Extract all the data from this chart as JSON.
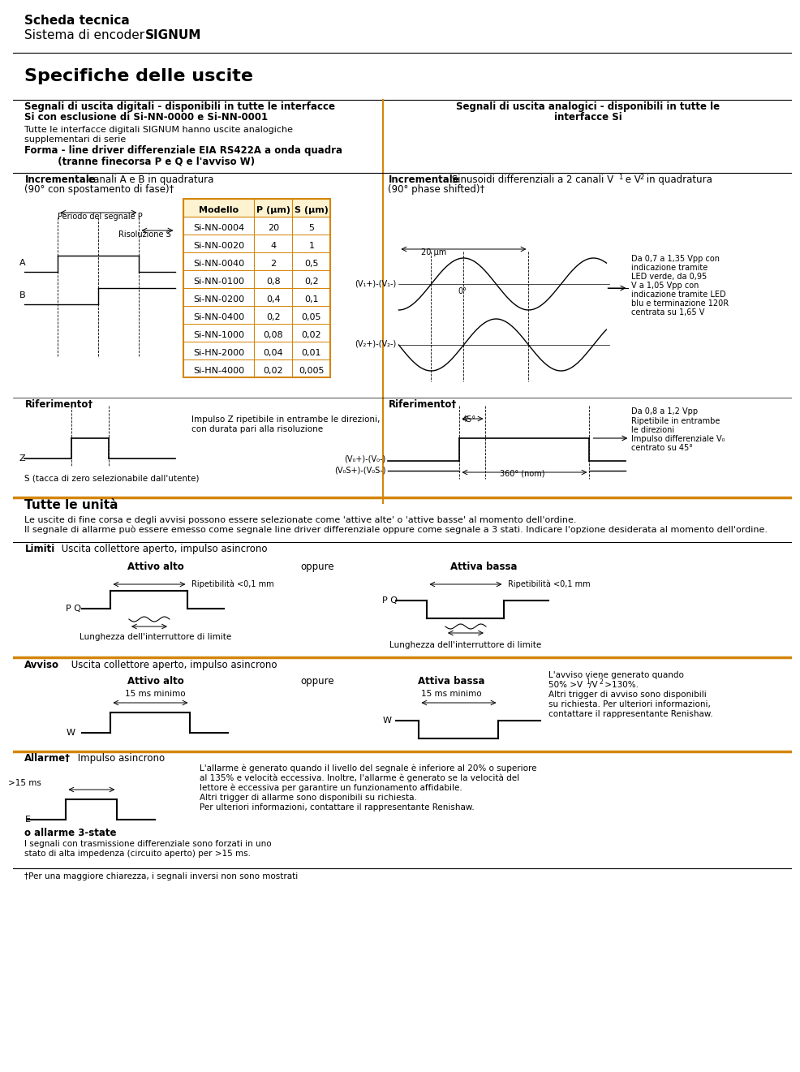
{
  "bg_color": "#ffffff",
  "text_color": "#000000",
  "orange_color": "#D4860A",
  "title1": "Scheda tecnica",
  "title2_normal": "Sistema di encoder ",
  "title2_bold": "SIGNUM",
  "section_title": "Specifiche delle uscite",
  "left_header1": "Segnali di uscita digitali - disponibili in tutte le interfacce",
  "left_header2": "Si con esclusione di Si-NN-0000 e Si-NN-0001",
  "right_header1": "Segnali di uscita analogici - disponibili in tutte le",
  "right_header2": "interfacce Si",
  "left_sub1": "Tutte le interfacce digitali SIGNUM hanno uscite analogiche",
  "left_sub2": "supplementari di serie",
  "left_sub3": "Forma - line driver differenziale EIA RS422A a onda quadra",
  "left_sub4": "          (tranne finecorsa P e Q e l'avviso W)",
  "inc_left_title": "Incrementale",
  "inc_left_sub1": " canali A e B in quadratura",
  "inc_left_sub2": "(90° con spostamento di fase)†",
  "inc_right_title": "Incrementale",
  "inc_right_sub4": "(90° phase shifted)†",
  "table_headers": [
    "Modello",
    "P (µm)",
    "S (µm)"
  ],
  "table_rows": [
    [
      "Si-NN-0004",
      "20",
      "5"
    ],
    [
      "Si-NN-0020",
      "4",
      "1"
    ],
    [
      "Si-NN-0040",
      "2",
      "0,5"
    ],
    [
      "Si-NN-0100",
      "0,8",
      "0,2"
    ],
    [
      "Si-NN-0200",
      "0,4",
      "0,1"
    ],
    [
      "Si-NN-0400",
      "0,2",
      "0,05"
    ],
    [
      "Si-NN-1000",
      "0,08",
      "0,02"
    ],
    [
      "Si-HN-2000",
      "0,04",
      "0,01"
    ],
    [
      "Si-HN-4000",
      "0,02",
      "0,005"
    ]
  ],
  "ref_left": "Riferimento†",
  "ref_right": "Riferimento†",
  "z_label": "Z",
  "z_desc1": "Impulso Z ripetibile in entrambe le direzioni,",
  "z_desc2": "con durata pari alla risoluzione",
  "s_label": "S (tacca di zero selezionabile dall'utente)",
  "right_ref_desc1": "Da 0,8 a 1,2 Vpp",
  "right_ref_desc2": "Ripetibile in entrambe",
  "right_ref_desc3": "le direzioni",
  "right_ref_desc4": "Impulso differenziale V₀",
  "right_ref_desc5": "centrato su 45°",
  "right_ref_45": "45°",
  "right_ref_360": "360° (nom)",
  "right_sig1": "(V₀+)-(V₀-)",
  "right_sig2": "(V₀S+)-(V₀S-)",
  "tutte_title": "Tutte le unità",
  "tutte_line1": "Le uscite di fine corsa e degli avvisi possono essere selezionate come 'attive alte' o 'attive basse' al momento dell'ordine.",
  "tutte_line2": "Il segnale di allarme può essere emesso come segnale line driver differenziale oppure come segnale a 3 stati. Indicare l'opzione desiderata al momento dell'ordine.",
  "limiti_title": "Limiti",
  "limiti_sub": " Uscita collettore aperto, impulso asincrono",
  "attivo_alto": "Attivo alto",
  "oppure": "oppure",
  "attiva_bassa": "Attiva bassa",
  "ripet_label": "Ripetibilità <0,1 mm",
  "lung_label": "Lunghezza dell'interruttore di limite",
  "pq_label": "P Q",
  "avviso_title": "Avviso",
  "avviso_sub": " Uscita collettore aperto, impulso asincrono",
  "attivo_alto2": "Attivo alto",
  "attiva_bassa2": "Attiva bassa",
  "oppure2": "oppure",
  "15ms": "15 ms minimo",
  "w_label": "W",
  "avviso_desc1": "L'avviso viene generato quando",
  "avviso_desc2": "50% >V₁/V₂ >130%.",
  "avviso_desc3": "Altri trigger di avviso sono disponibili",
  "avviso_desc4": "su richiesta. Per ulteriori informazioni,",
  "avviso_desc5": "contattare il rappresentante Renishaw.",
  "allarme_title": "Allarme†",
  "allarme_sub": " Impulso asincrono",
  "allarme_desc1": "L'allarme è generato quando il livello del segnale è inferiore al 20% o superiore",
  "allarme_desc2": "al 135% e velocità eccessiva. Inoltre, l'allarme è generato se la velocità del",
  "allarme_desc3": "lettore è eccessiva per garantire un funzionamento affidabile.",
  "allarme_desc4": "Altri trigger di allarme sono disponibili su richiesta.",
  "allarme_desc5": "Per ulteriori informazioni, contattare il rappresentante Renishaw.",
  "e_label": "E",
  "gt15ms": ">15 ms",
  "o_allarme": "o allarme 3-state",
  "o_allarme_desc1": "I segnali con trasmissione differenziale sono forzati in uno",
  "o_allarme_desc2": "stato di alta impedenza (circuito aperto) per >15 ms.",
  "footer": "†Per una maggiore chiarezza, i segnali inversi non sono mostrati",
  "right_sig_v1": "(V₁+)-(V₁-)",
  "right_sig_v2": "(V₂+)-(V₂-)",
  "right_20um": "20 µm",
  "right_0deg": "0°",
  "right_desc1": "Da 0,7 a 1,35 Vpp con",
  "right_desc2": "indicazione tramite",
  "right_desc3": "LED verde, da 0,95",
  "right_desc4": "V a 1,05 Vpp con",
  "right_desc5": "indicazione tramite LED",
  "right_desc6": "blu e terminazione 120R",
  "right_desc7": "centrata su 1,65 V",
  "periodo_label": "Periodo del segnale P",
  "risoluzione_label": "Risoluzione S",
  "a_label": "A",
  "b_label": "B"
}
